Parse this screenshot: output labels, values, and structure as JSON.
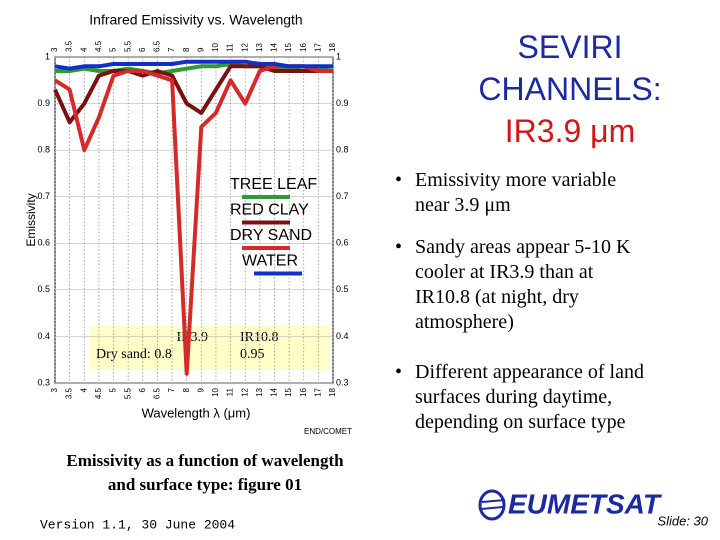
{
  "chart_data": {
    "type": "line",
    "title": "Infrared Emissivity vs. Wavelength",
    "x_label": "Wavelength λ (μm)",
    "y_label": "Emissivity",
    "x": [
      3,
      3.5,
      4,
      4.5,
      5,
      5.5,
      6,
      6.5,
      7,
      8,
      9,
      10,
      11,
      12,
      13,
      14,
      15,
      16,
      17,
      18
    ],
    "xticks": [
      3,
      3.5,
      4,
      4.5,
      5,
      5.5,
      6,
      6.5,
      7,
      8,
      9,
      10,
      11,
      12,
      13,
      14,
      15,
      16,
      17,
      18
    ],
    "xlim": [
      3,
      18
    ],
    "ylim": [
      0.3,
      1
    ],
    "yticks": [
      1,
      0.9,
      0.8,
      0.7,
      0.6,
      0.5,
      0.4,
      0.3
    ],
    "grid": true,
    "series": [
      {
        "name": "TREE LEAF",
        "color": "#2f9a3a",
        "values": [
          0.97,
          0.97,
          0.975,
          0.97,
          0.97,
          0.975,
          0.97,
          0.965,
          0.97,
          0.975,
          0.98,
          0.98,
          0.985,
          0.98,
          0.98,
          0.975,
          0.975,
          0.98,
          0.975,
          0.97
        ]
      },
      {
        "name": "RED CLAY",
        "color": "#7a1010",
        "values": [
          0.93,
          0.86,
          0.9,
          0.96,
          0.97,
          0.97,
          0.96,
          0.97,
          0.96,
          0.9,
          0.88,
          0.93,
          0.98,
          0.98,
          0.98,
          0.97,
          0.97,
          0.97,
          0.97,
          0.97
        ]
      },
      {
        "name": "DRY SAND",
        "color": "#d42a2a",
        "values": [
          0.95,
          0.93,
          0.8,
          0.87,
          0.96,
          0.97,
          0.97,
          0.96,
          0.95,
          0.32,
          0.85,
          0.88,
          0.95,
          0.9,
          0.97,
          0.98,
          0.98,
          0.98,
          0.97,
          0.97
        ]
      },
      {
        "name": "WATER",
        "color": "#1030c8",
        "values": [
          0.98,
          0.975,
          0.98,
          0.98,
          0.985,
          0.985,
          0.985,
          0.985,
          0.985,
          0.99,
          0.99,
          0.99,
          0.99,
          0.99,
          0.985,
          0.985,
          0.98,
          0.98,
          0.98,
          0.98
        ]
      }
    ],
    "annotations": [
      "IR3.9",
      "Dry sand: 0.8",
      "IR10.8",
      "0.95"
    ],
    "source": "END/COMET"
  },
  "slide": {
    "title": [
      "SEVIRI",
      "CHANNELS:",
      "IR3.9 μm"
    ],
    "bullets": [
      [
        "Emissivity more variable",
        "near 3.9 μm"
      ],
      [
        "Sandy areas appear 5-10 K",
        "cooler at IR3.9 than at",
        "IR10.8 (at night, dry",
        "atmosphere)"
      ],
      [
        "Different appearance of land",
        "surfaces during daytime,",
        "depending on surface type"
      ]
    ],
    "caption": [
      "Emissivity as a function of wavelength",
      "and surface type: figure 01"
    ],
    "version": "Version 1.1, 30 June 2004",
    "logo": "EUMETSAT",
    "slide_number": "Slide: 30"
  }
}
